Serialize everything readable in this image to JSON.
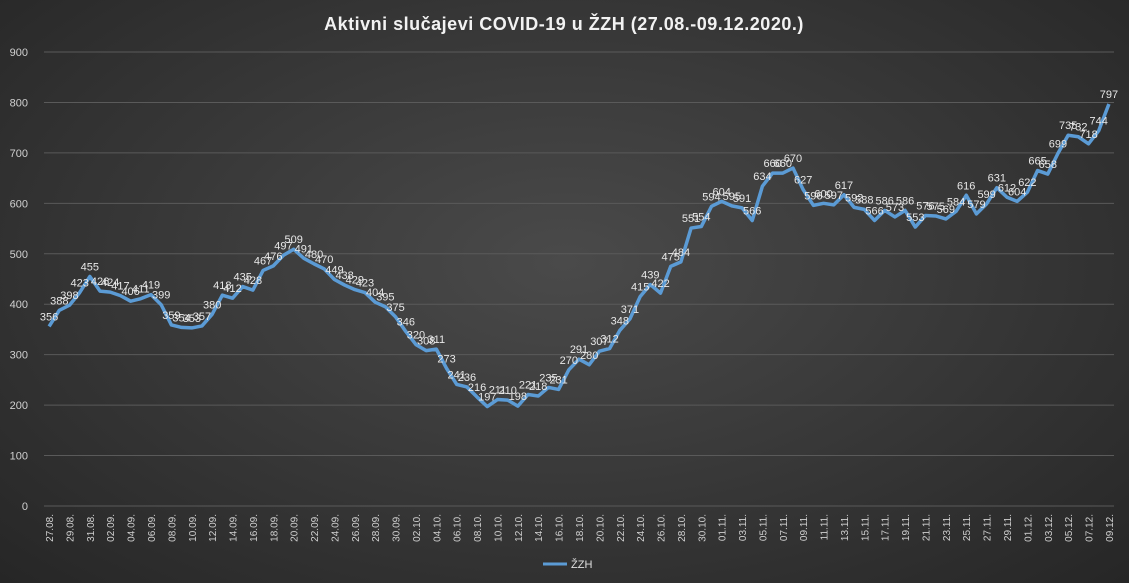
{
  "chart_data": {
    "type": "line",
    "title": "Aktivni  slučajevi  COVID-19  u ŽZH (27.08.-09.12.2020.)",
    "xlabel": "",
    "ylabel": "",
    "ylim": [
      0,
      900
    ],
    "yticks": [
      0,
      100,
      200,
      300,
      400,
      500,
      600,
      700,
      800,
      900
    ],
    "grid": true,
    "legend_position": "bottom",
    "line_color": "#5b9bd5",
    "x_tick_labels": [
      "27.08.",
      "29.08.",
      "31.08.",
      "02.09.",
      "04.09.",
      "06.09.",
      "08.09.",
      "10.09.",
      "12.09.",
      "14.09.",
      "16.09.",
      "18.09.",
      "20.09.",
      "22.09.",
      "24.09.",
      "26.09.",
      "28.09.",
      "30.09.",
      "02.10.",
      "04.10.",
      "06.10.",
      "08.10.",
      "10.10.",
      "12.10.",
      "14.10.",
      "16.10.",
      "18.10.",
      "20.10.",
      "22.10.",
      "24.10.",
      "26.10.",
      "28.10.",
      "30.10.",
      "01.11.",
      "03.11.",
      "05.11.",
      "07.11.",
      "09.11.",
      "11.11.",
      "13.11.",
      "15.11.",
      "17.11.",
      "19.11.",
      "21.11.",
      "23.11.",
      "25.11.",
      "27.11.",
      "29.11.",
      "01.12.",
      "03.12.",
      "05.12.",
      "07.12.",
      "09.12."
    ],
    "series": [
      {
        "name": "ŽZH",
        "values": [
          356,
          388,
          398,
          423,
          455,
          426,
          424,
          417,
          406,
          411,
          419,
          399,
          359,
          354,
          353,
          357,
          380,
          418,
          412,
          435,
          428,
          467,
          476,
          497,
          509,
          491,
          480,
          470,
          449,
          438,
          429,
          423,
          404,
          395,
          375,
          346,
          320,
          308,
          311,
          273,
          241,
          236,
          216,
          197,
          211,
          210,
          198,
          221,
          218,
          235,
          231,
          270,
          291,
          280,
          307,
          312,
          348,
          371,
          415,
          439,
          422,
          475,
          484,
          551,
          554,
          594,
          604,
          595,
          591,
          566,
          634,
          660,
          660,
          670,
          627,
          596,
          600,
          597,
          617,
          592,
          588,
          566,
          586,
          573,
          586,
          553,
          576,
          575,
          569,
          584,
          616,
          579,
          599,
          631,
          612,
          604,
          622,
          665,
          658,
          699,
          735,
          732,
          718,
          744,
          797
        ]
      }
    ]
  }
}
